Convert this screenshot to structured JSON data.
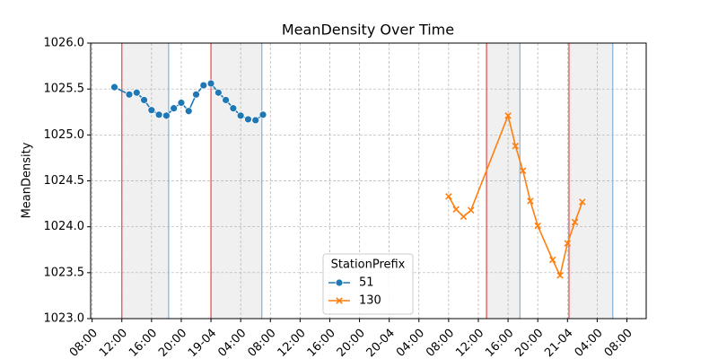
{
  "chart_data": {
    "type": "line",
    "title": "MeanDensity Over Time",
    "y_label": "MeanDensity",
    "legend_title": "StationPrefix",
    "legend_position": "bottom-center",
    "grid": true,
    "xlim": [
      7.8,
      82.6
    ],
    "ylim": [
      1023.0,
      1026.0
    ],
    "xticks": [
      {
        "value": 8,
        "label": "08:00"
      },
      {
        "value": 12,
        "label": "12:00"
      },
      {
        "value": 16,
        "label": "16:00"
      },
      {
        "value": 20,
        "label": "20:00"
      },
      {
        "value": 24,
        "label": "19-04"
      },
      {
        "value": 28,
        "label": "04:00"
      },
      {
        "value": 32,
        "label": "08:00"
      },
      {
        "value": 36,
        "label": "12:00"
      },
      {
        "value": 40,
        "label": "16:00"
      },
      {
        "value": 44,
        "label": "20:00"
      },
      {
        "value": 48,
        "label": "20-04"
      },
      {
        "value": 52,
        "label": "04:00"
      },
      {
        "value": 56,
        "label": "08:00"
      },
      {
        "value": 60,
        "label": "12:00"
      },
      {
        "value": 64,
        "label": "16:00"
      },
      {
        "value": 68,
        "label": "20:00"
      },
      {
        "value": 72,
        "label": "21-04"
      },
      {
        "value": 76,
        "label": "04:00"
      },
      {
        "value": 80,
        "label": "08:00"
      }
    ],
    "yticks": [
      {
        "value": 1023.0,
        "label": "1023.0"
      },
      {
        "value": 1023.5,
        "label": "1023.5"
      },
      {
        "value": 1024.0,
        "label": "1024.0"
      },
      {
        "value": 1024.5,
        "label": "1024.5"
      },
      {
        "value": 1025.0,
        "label": "1025.0"
      },
      {
        "value": 1025.5,
        "label": "1025.5"
      },
      {
        "value": 1026.0,
        "label": "1026.0"
      }
    ],
    "shaded_spans": [
      [
        12,
        18.3
      ],
      [
        24,
        30.85
      ],
      [
        61.1,
        65.6
      ],
      [
        72.2,
        78.1
      ]
    ],
    "span_start_color": "#e8474a",
    "span_end_color": "#7fb2dc",
    "span_fill": "#f0f0f0",
    "series": [
      {
        "name": "51",
        "color": "#1f77b4",
        "marker": "circle",
        "x": [
          11,
          13,
          14,
          15,
          16,
          17,
          18,
          19,
          20,
          21,
          22,
          23,
          24,
          25,
          26,
          27,
          28,
          29,
          30,
          31
        ],
        "values": [
          1025.52,
          1025.44,
          1025.46,
          1025.38,
          1025.27,
          1025.22,
          1025.21,
          1025.29,
          1025.35,
          1025.26,
          1025.44,
          1025.54,
          1025.56,
          1025.46,
          1025.38,
          1025.29,
          1025.21,
          1025.17,
          1025.16,
          1025.22
        ]
      },
      {
        "name": "130",
        "color": "#ff7f0e",
        "marker": "x",
        "x": [
          56,
          57,
          58,
          59,
          64,
          65,
          66,
          67,
          68,
          70,
          71,
          72,
          73,
          74
        ],
        "values": [
          1024.33,
          1024.19,
          1024.11,
          1024.18,
          1025.21,
          1024.88,
          1024.61,
          1024.28,
          1024.01,
          1023.64,
          1023.47,
          1023.82,
          1024.05,
          1024.27
        ]
      }
    ]
  }
}
